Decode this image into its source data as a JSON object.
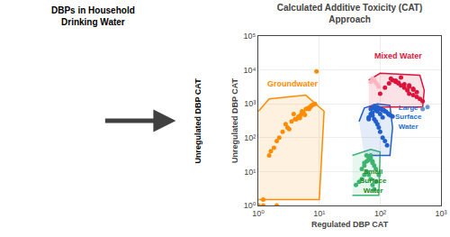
{
  "chart_data": {
    "type": "scatter",
    "title": "Calculated Additive Toxicity (CAT)\nApproach",
    "subtitle": "DBPs in Household\nDrinking Water",
    "x_label": "Regulated DBP CAT",
    "y_label": "Unregulated DBP CAT",
    "log": true,
    "grid": true,
    "xlim": [
      1,
      1000
    ],
    "ylim": [
      1,
      100000
    ],
    "xticks": [
      {
        "value": 1,
        "label": "10⁰"
      },
      {
        "value": 10,
        "label": "10¹"
      },
      {
        "value": 100,
        "label": "10²"
      },
      {
        "value": 1000,
        "label": "10³"
      }
    ],
    "yticks": [
      {
        "value": 1,
        "label": "10⁰"
      },
      {
        "value": 10,
        "label": "10¹"
      },
      {
        "value": 100,
        "label": "10²"
      },
      {
        "value": 1000,
        "label": "10³"
      },
      {
        "value": 10000,
        "label": "10⁴"
      },
      {
        "value": 100000,
        "label": "10⁵"
      }
    ],
    "series": [
      {
        "color": "#FF8C00",
        "x": [
          1.8,
          2.0,
          2.2,
          1.5,
          1.6,
          2.5,
          3.0,
          2.8,
          3.5,
          4.0,
          4.5,
          3.8,
          4.2,
          5.0,
          4.8,
          5.5,
          5.2,
          6.0,
          6.5,
          7.0,
          6.8,
          7.5,
          8.0,
          8.5,
          9.0,
          3.2,
          4.6,
          5.8,
          7.2,
          1.2,
          1.0
        ],
        "values": [
          50,
          80,
          100,
          30,
          40,
          150,
          200,
          250,
          300,
          350,
          400,
          500,
          350,
          480,
          380,
          550,
          600,
          700,
          750,
          800,
          700,
          900,
          950,
          1000,
          9000,
          180,
          420,
          470,
          820,
          1.5,
          1.0
        ],
        "border": [
          [
            1.0,
            1.5
          ],
          [
            10,
            1.5
          ],
          [
            12,
            600
          ],
          [
            6,
            1800
          ],
          [
            1.5,
            1400
          ],
          [
            1.0,
            600
          ]
        ]
      },
      {
        "color": "#3CB371",
        "x": [
          40,
          45,
          50,
          55,
          60,
          65,
          70,
          75,
          80,
          85,
          55,
          60,
          65,
          70,
          75,
          80,
          50,
          55,
          65,
          75,
          85,
          95,
          70,
          60
        ],
        "values": [
          4,
          5,
          6,
          8,
          10,
          8,
          6,
          4,
          3,
          5,
          15,
          20,
          25,
          30,
          20,
          15,
          12,
          18,
          22,
          18,
          12,
          8,
          25,
          30
        ],
        "border": [
          [
            35,
            2
          ],
          [
            95,
            2
          ],
          [
            100,
            38
          ],
          [
            70,
            45
          ],
          [
            35,
            30
          ]
        ]
      },
      {
        "color": "#2060CC",
        "x": [
          65,
          70,
          75,
          80,
          85,
          90,
          95,
          100,
          110,
          120,
          130,
          90,
          100,
          110,
          70,
          80,
          90,
          100,
          110,
          120,
          75,
          85,
          95,
          105,
          115,
          80,
          65,
          125,
          135,
          140,
          150,
          160
        ],
        "values": [
          400,
          500,
          450,
          350,
          300,
          250,
          200,
          150,
          100,
          80,
          60,
          600,
          500,
          400,
          700,
          750,
          800,
          700,
          650,
          600,
          550,
          650,
          750,
          700,
          650,
          850,
          350,
          580,
          520,
          480,
          450,
          420
        ],
        "border": [
          [
            55,
            30
          ],
          [
            145,
            30
          ],
          [
            160,
            200
          ],
          [
            145,
            900
          ],
          [
            90,
            1000
          ],
          [
            55,
            750
          ],
          [
            45,
            300
          ]
        ]
      },
      {
        "color": "#DC143C",
        "x": [
          100,
          120,
          140,
          160,
          180,
          200,
          220,
          250,
          280,
          300,
          350,
          400,
          450,
          500,
          300,
          350,
          400,
          200,
          250,
          300,
          350,
          150,
          180,
          220
        ],
        "values": [
          2000,
          3000,
          4000,
          5000,
          4500,
          4000,
          3500,
          3000,
          2500,
          2000,
          1800,
          1600,
          1400,
          1200,
          3500,
          2800,
          2200,
          4200,
          3800,
          3200,
          2600,
          5500,
          4800,
          6000
        ],
        "border": [
          [
            65,
            800
          ],
          [
            500,
            800
          ],
          [
            530,
            2500
          ],
          [
            450,
            7000
          ],
          [
            100,
            8000
          ],
          [
            65,
            5000
          ]
        ]
      },
      {
        "color": "#FFB6C1",
        "x": [
          70,
          75,
          80,
          85,
          90,
          95
        ],
        "values": [
          4500,
          5500,
          5000,
          4200,
          3800,
          3200
        ]
      },
      {
        "color": "#FF8C00",
        "x": [
          1.2,
          2.0
        ],
        "values": [
          1.0,
          1.0
        ]
      },
      {
        "color": "#6699CC",
        "x": [
          500,
          600
        ],
        "values": [
          700,
          800
        ]
      }
    ],
    "annotations": [
      {
        "text": "Groundwater",
        "color": "#FF8C00",
        "x": 1.3,
        "y": 2500
      },
      {
        "text": "Small\nSurface\nWater",
        "color": "#228B22",
        "x": 43,
        "y": 1.8
      },
      {
        "text": "Large\nSurface\nWater",
        "color": "#1E6FCC",
        "x": 165,
        "y": 400
      },
      {
        "text": "Mixed Water",
        "color": "#DC143C",
        "x": 200,
        "y": 40000
      },
      {
        "text": "Unregulated DBP CAT"
      }
    ]
  }
}
